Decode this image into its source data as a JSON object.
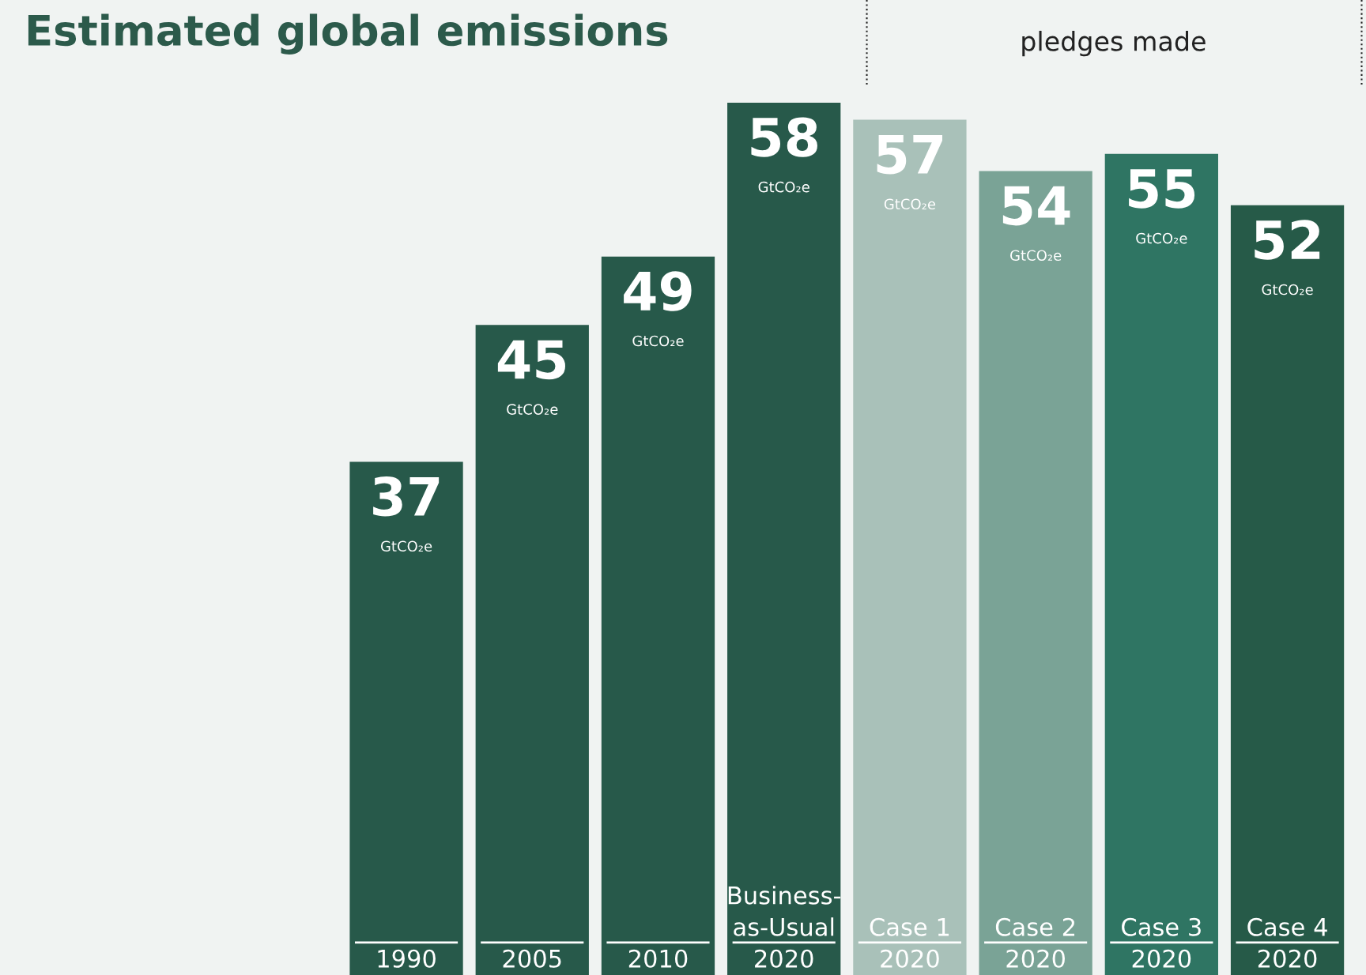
{
  "chart_data": {
    "type": "bar",
    "title": "Estimated global emissions",
    "categories": [
      "1990",
      "2005",
      "2010",
      "Business-\nas-Usual\n2020",
      "Case 1\n2020",
      "Case 2\n2020",
      "Case 3\n2020",
      "Case 4\n2020"
    ],
    "values": [
      37,
      45,
      49,
      58,
      57,
      54,
      55,
      52
    ],
    "colors": [
      "#27594a",
      "#27594a",
      "#27594a",
      "#27594a",
      "#a9c1b9",
      "#7aa396",
      "#2f7563",
      "#265a48"
    ],
    "value_labels": [
      "37\nGtCO₂e",
      "45\nGtCO₂e",
      "49\nGtCO₂e",
      "58\nGtCO₂e",
      "57\nGtCO₂e",
      "54\nGtCO₂e",
      "55\nGtCO₂e",
      "52\nGtCO₂e"
    ],
    "annotations": [
      "pledges made"
    ],
    "ylim": [
      7,
      64
    ],
    "tick_labels": "x"
  }
}
